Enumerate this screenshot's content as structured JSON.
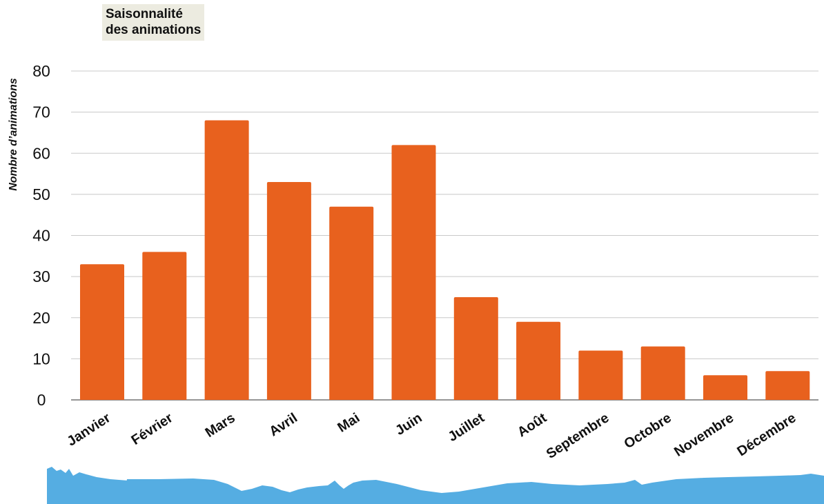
{
  "chart_data": {
    "type": "bar",
    "title": "Saisonnalité des animations",
    "title_lines": [
      "Saisonnalité",
      "des animations"
    ],
    "ylabel": "Nombre d’animations",
    "xlabel": "",
    "categories": [
      "Janvier",
      "Février",
      "Mars",
      "Avril",
      "Mai",
      "Juin",
      "Juillet",
      "Août",
      "Septembre",
      "Octobre",
      "Novembre",
      "Décembre"
    ],
    "values": [
      33,
      36,
      68,
      53,
      47,
      62,
      25,
      19,
      12,
      13,
      6,
      7
    ],
    "ylim": [
      0,
      80
    ],
    "yticks": [
      0,
      10,
      20,
      30,
      40,
      50,
      60,
      70,
      80
    ],
    "grid": true,
    "legend": "none"
  },
  "colors": {
    "bar": "#e8611e",
    "grid": "#c8c8c8",
    "axis": "#555555",
    "title_bg": "#ecebe0",
    "water": "#55ade2"
  },
  "decoration": "water-wave-icon"
}
